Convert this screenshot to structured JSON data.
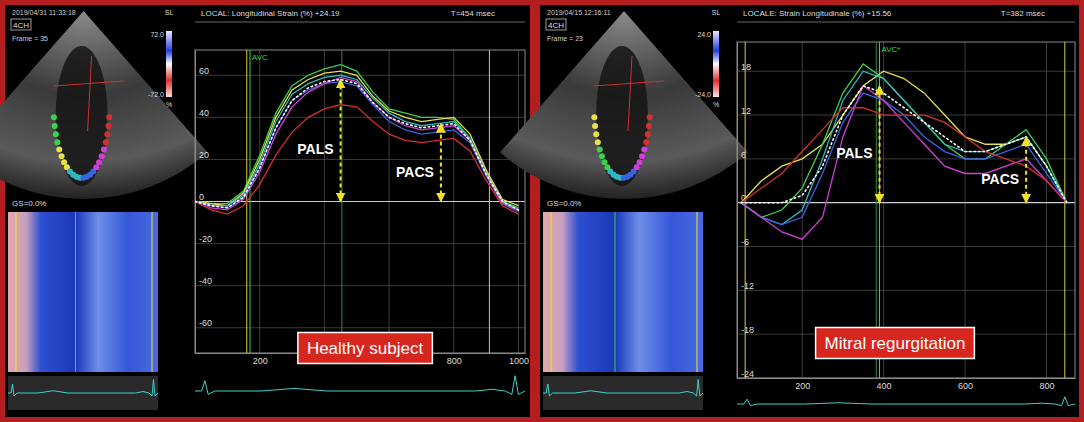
{
  "chart_data": [
    {
      "type": "line",
      "title": "LOCAL: Longitudinal Strain (%) +24.19",
      "subtitle": "T=454 msec",
      "label": "Healthy subject",
      "view": "4CH",
      "timestamp": "2019/04/31 11:33:18",
      "frame": "Frame = 35",
      "gs": "GS=0.0%",
      "colorbar": {
        "title": "SL",
        "unit": "%",
        "ticks": [
          {
            "value": 72,
            "label": "72.0"
          },
          {
            "value": -72,
            "label": "-72.0"
          }
        ]
      },
      "x": [
        0,
        50,
        100,
        150,
        200,
        250,
        300,
        350,
        400,
        450,
        500,
        550,
        600,
        650,
        700,
        750,
        800,
        850,
        900,
        950,
        1000
      ],
      "xlim": [
        0,
        1020
      ],
      "xticks": [
        200,
        400,
        600,
        800,
        1000
      ],
      "ylim": [
        -72,
        72
      ],
      "yticks": [
        -60,
        -40,
        -20,
        0,
        20,
        40,
        60
      ],
      "grid": true,
      "series": [
        {
          "color": "#3fcf4f",
          "values": [
            0,
            -1,
            -1,
            5,
            22,
            42,
            55,
            60,
            63,
            65,
            62,
            52,
            44,
            42,
            40,
            40,
            39,
            30,
            14,
            0,
            -3
          ]
        },
        {
          "color": "#e6e14a",
          "values": [
            0,
            -1,
            -2,
            4,
            20,
            40,
            53,
            58,
            61,
            62,
            60,
            50,
            43,
            40,
            38,
            39,
            40,
            32,
            15,
            1,
            -2
          ]
        },
        {
          "color": "#2fb8c0",
          "values": [
            0,
            -2,
            -2,
            3,
            18,
            38,
            51,
            56,
            59,
            60,
            58,
            49,
            42,
            38,
            36,
            37,
            38,
            30,
            13,
            0,
            -4
          ]
        },
        {
          "color": "#3a63e0",
          "values": [
            0,
            -2,
            -3,
            2,
            16,
            35,
            48,
            53,
            56,
            57,
            55,
            46,
            38,
            34,
            32,
            33,
            34,
            28,
            12,
            -1,
            -5
          ]
        },
        {
          "color": "#d040d8",
          "values": [
            0,
            -3,
            -4,
            1,
            14,
            32,
            45,
            52,
            56,
            59,
            57,
            47,
            40,
            36,
            34,
            35,
            36,
            29,
            13,
            -1,
            -4
          ]
        },
        {
          "color": "#d23030",
          "values": [
            0,
            -4,
            -6,
            -2,
            8,
            22,
            33,
            40,
            44,
            46,
            45,
            38,
            32,
            29,
            28,
            29,
            30,
            24,
            10,
            -2,
            -6
          ]
        },
        {
          "color": "#ffffff",
          "line_style": "dotted",
          "values": [
            0,
            -2,
            -3,
            2,
            16,
            35,
            48,
            54,
            57,
            58,
            56,
            47,
            40,
            37,
            35,
            36,
            37,
            29,
            13,
            0,
            -4
          ]
        }
      ],
      "markers": [
        {
          "label": "AVC",
          "x": 170
        }
      ],
      "cursor": 454,
      "cycle": [
        160,
        910
      ],
      "annotations": [
        {
          "text": "PALS",
          "x": 450,
          "y": 58
        },
        {
          "text": "PACS",
          "x": 760,
          "y": 37
        }
      ]
    },
    {
      "type": "line",
      "title": "LOCALE: Strain Longitudinale (%) +15.56",
      "subtitle": "T=382 msec",
      "label": "Mitral regurgitation",
      "view": "4CH",
      "timestamp": "2019/04/15 12:16:11",
      "frame": "Frame = 23",
      "gs": "GS=0.0%",
      "colorbar": {
        "title": "SL",
        "unit": "%",
        "ticks": [
          {
            "value": 24,
            "label": "24.0"
          },
          {
            "value": -24,
            "label": "-24.0"
          }
        ]
      },
      "x": [
        50,
        100,
        150,
        200,
        250,
        300,
        350,
        400,
        450,
        500,
        550,
        600,
        650,
        700,
        750,
        800,
        850
      ],
      "xlim": [
        40,
        870
      ],
      "xticks": [
        200,
        400,
        600,
        800
      ],
      "ylim": [
        -24,
        22
      ],
      "yticks": [
        -24,
        -18,
        -12,
        -6,
        0,
        6,
        12,
        18
      ],
      "grid": true,
      "series": [
        {
          "color": "#e6e14a",
          "values": [
            0,
            3,
            5,
            6,
            8,
            12,
            16,
            18,
            17,
            15,
            12,
            9,
            8,
            8,
            9,
            5,
            0
          ]
        },
        {
          "color": "#3fcf4f",
          "values": [
            0,
            -2,
            -1,
            2,
            8,
            15,
            19,
            17,
            14,
            11,
            8,
            6,
            6,
            8,
            10,
            6,
            0
          ]
        },
        {
          "color": "#2fb8c0",
          "values": [
            0,
            -2,
            -3,
            -1,
            6,
            14,
            18,
            17,
            14,
            11,
            8,
            7,
            7,
            8,
            9,
            5,
            0
          ]
        },
        {
          "color": "#3a63e0",
          "values": [
            0,
            -2,
            -3,
            -2,
            4,
            11,
            15,
            14,
            12,
            9,
            7,
            6,
            6,
            7,
            8,
            4,
            0
          ]
        },
        {
          "color": "#d040d8",
          "values": [
            0,
            -2,
            -4,
            -5,
            -2,
            9,
            16,
            14,
            11,
            8,
            5,
            4,
            4,
            5,
            6,
            3,
            0
          ]
        },
        {
          "color": "#d23030",
          "values": [
            0,
            2,
            4,
            7,
            10,
            13,
            13,
            12,
            12,
            12,
            11,
            9,
            7,
            6,
            5,
            3,
            0
          ]
        },
        {
          "color": "#ffffff",
          "line_style": "dotted",
          "values": [
            0,
            0,
            0,
            1,
            5,
            12,
            16,
            15,
            13,
            11,
            9,
            7,
            7,
            8,
            9,
            5,
            0
          ]
        }
      ],
      "markers": [
        {
          "label": "AVC*",
          "x": 390
        }
      ],
      "cursor": 382,
      "cycle": [
        60,
        845
      ],
      "annotations": [
        {
          "text": "PALS",
          "x": 390,
          "y": 16
        },
        {
          "text": "PACS",
          "x": 750,
          "y": 9
        }
      ]
    }
  ]
}
